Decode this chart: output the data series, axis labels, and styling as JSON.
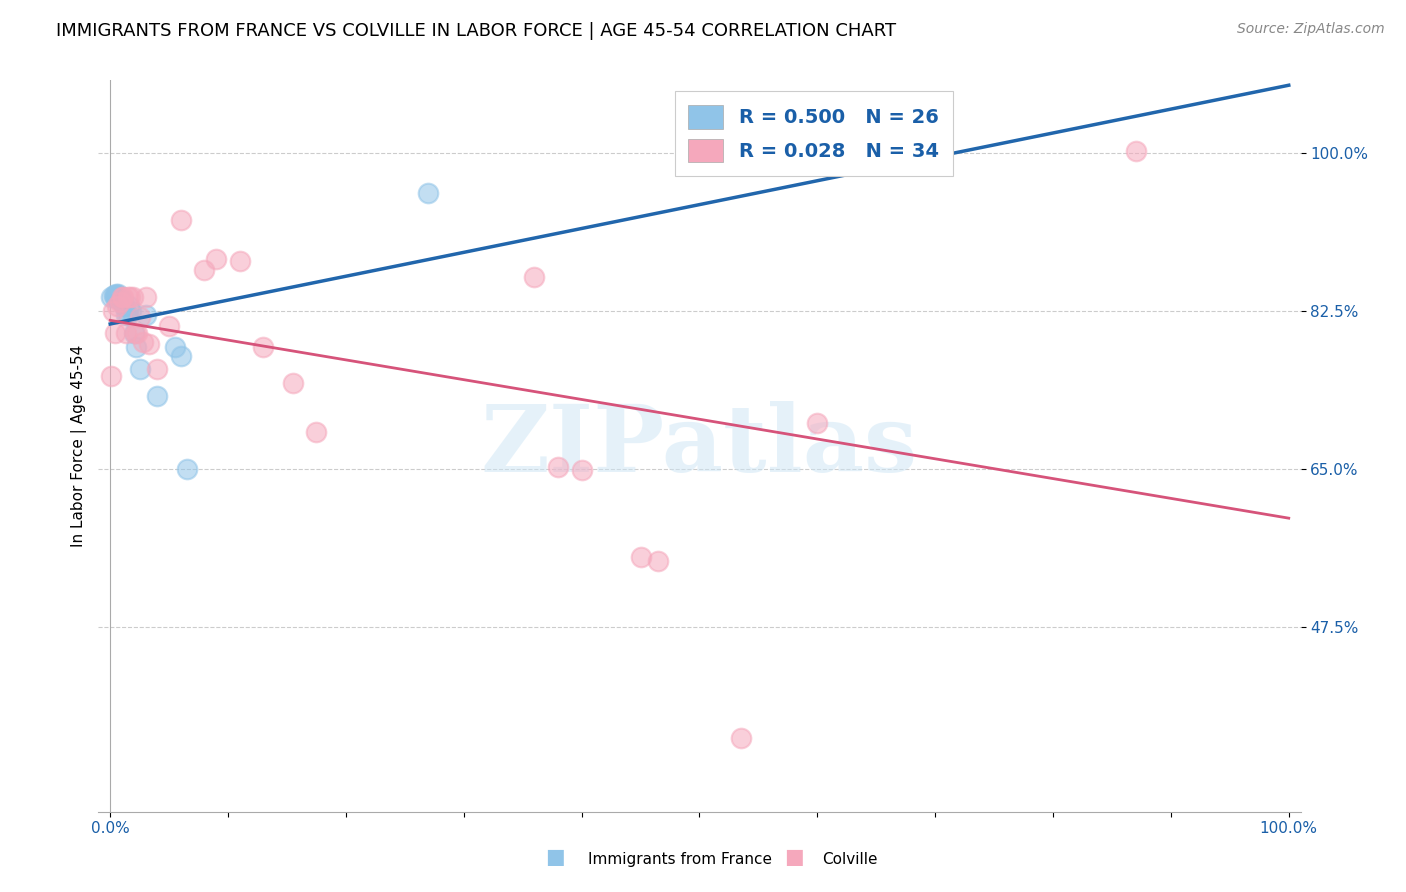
{
  "title": "IMMIGRANTS FROM FRANCE VS COLVILLE IN LABOR FORCE | AGE 45-54 CORRELATION CHART",
  "source": "Source: ZipAtlas.com",
  "ylabel": "In Labor Force | Age 45-54",
  "legend_label1": "Immigrants from France",
  "legend_label2": "Colville",
  "R1": 0.5,
  "N1": 26,
  "R2": 0.028,
  "N2": 34,
  "color_blue": "#90c4e8",
  "color_blue_line": "#2166ac",
  "color_pink": "#f5a8bc",
  "color_pink_line": "#d6537a",
  "ytick_vals": [
    0.475,
    0.65,
    0.825,
    1.0
  ],
  "ytick_labels": [
    "47.5%",
    "65.0%",
    "82.5%",
    "100.0%"
  ],
  "xtick_vals": [
    0.0,
    0.1,
    0.2,
    0.3,
    0.4,
    0.5,
    0.6,
    0.7,
    0.8,
    0.9,
    1.0
  ],
  "xtick_labels": [
    "0.0%",
    "",
    "",
    "",
    "",
    "",
    "",
    "",
    "",
    "",
    "100.0%"
  ],
  "xmin": -0.01,
  "xmax": 1.01,
  "ymin": 0.27,
  "ymax": 1.08,
  "france_x": [
    0.001,
    0.003,
    0.004,
    0.005,
    0.006,
    0.007,
    0.007,
    0.008,
    0.008,
    0.009,
    0.01,
    0.011,
    0.012,
    0.013,
    0.015,
    0.016,
    0.018,
    0.02,
    0.022,
    0.025,
    0.03,
    0.04,
    0.055,
    0.06,
    0.065,
    0.27
  ],
  "france_y": [
    0.84,
    0.842,
    0.84,
    0.843,
    0.842,
    0.843,
    0.838,
    0.84,
    0.838,
    0.838,
    0.835,
    0.835,
    0.83,
    0.82,
    0.82,
    0.83,
    0.825,
    0.8,
    0.785,
    0.76,
    0.82,
    0.73,
    0.785,
    0.775,
    0.65,
    0.955
  ],
  "colville_x": [
    0.001,
    0.002,
    0.004,
    0.006,
    0.008,
    0.01,
    0.011,
    0.013,
    0.015,
    0.017,
    0.019,
    0.021,
    0.023,
    0.025,
    0.028,
    0.03,
    0.033,
    0.04,
    0.05,
    0.06,
    0.08,
    0.09,
    0.11,
    0.13,
    0.155,
    0.175,
    0.36,
    0.38,
    0.4,
    0.45,
    0.465,
    0.535,
    0.6,
    0.87
  ],
  "colville_y": [
    0.752,
    0.825,
    0.8,
    0.83,
    0.835,
    0.84,
    0.84,
    0.8,
    0.84,
    0.84,
    0.84,
    0.8,
    0.8,
    0.818,
    0.79,
    0.84,
    0.788,
    0.76,
    0.808,
    0.925,
    0.87,
    0.882,
    0.88,
    0.785,
    0.745,
    0.69,
    0.862,
    0.652,
    0.648,
    0.552,
    0.548,
    0.352,
    0.7,
    1.002
  ],
  "watermark_text": "ZIPatlas",
  "background_color": "#ffffff",
  "grid_color": "#cccccc",
  "title_fontsize": 13,
  "tick_label_color": "#1a5fa8",
  "tick_fontsize": 11,
  "source_fontsize": 10,
  "legend_fontsize": 14
}
